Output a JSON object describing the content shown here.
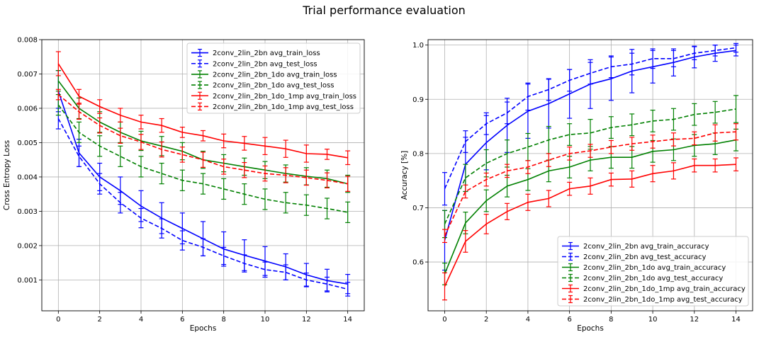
{
  "suptitle": "Trial performance evaluation",
  "chart_data": [
    {
      "type": "line",
      "xlabel": "Epochs",
      "ylabel": "Cross Entropy Loss",
      "xlim": [
        -0.8,
        14.8
      ],
      "ylim": [
        0.0001,
        0.008
      ],
      "xticks": [
        0,
        2,
        4,
        6,
        8,
        10,
        12,
        14
      ],
      "yticks": [
        0.001,
        0.002,
        0.003,
        0.004,
        0.005,
        0.006,
        0.007,
        0.008
      ],
      "ytick_labels": [
        "0.001",
        "0.002",
        "0.003",
        "0.004",
        "0.005",
        "0.006",
        "0.007",
        "0.008"
      ],
      "grid": true,
      "legend_position": "top-right",
      "x": [
        0,
        1,
        2,
        3,
        4,
        5,
        6,
        7,
        8,
        9,
        10,
        11,
        12,
        13,
        14
      ],
      "series": [
        {
          "name": "2conv_2lin_2bn  avg_train_loss",
          "color": "#0000ff",
          "dash": false,
          "values": [
            0.0065,
            0.0047,
            0.004,
            0.0036,
            0.00315,
            0.0028,
            0.0025,
            0.0022,
            0.0019,
            0.00172,
            0.00155,
            0.00138,
            0.00115,
            0.00098,
            0.00088
          ],
          "errors": [
            0.0006,
            0.0004,
            0.0004,
            0.0004,
            0.00045,
            0.00045,
            0.00045,
            0.0005,
            0.0005,
            0.00045,
            0.00042,
            0.00038,
            0.00033,
            0.00033,
            0.00028
          ]
        },
        {
          "name": "2conv_2lin_2bn  avg_test_loss",
          "color": "#0000ff",
          "dash": true,
          "values": [
            0.0057,
            0.0046,
            0.0038,
            0.00325,
            0.0028,
            0.0025,
            0.00215,
            0.00195,
            0.0017,
            0.00148,
            0.0013,
            0.00122,
            0.001,
            0.00088,
            0.00073
          ],
          "errors": [
            0.0003,
            0.0003,
            0.0003,
            0.0003,
            0.00028,
            0.00028,
            0.00028,
            0.00025,
            0.00025,
            0.00025,
            0.00022,
            0.00022,
            0.0002,
            0.0002,
            0.0002
          ]
        },
        {
          "name": "2conv_2lin_2bn_1do  avg_train_loss",
          "color": "#008000",
          "dash": false,
          "values": [
            0.0068,
            0.006,
            0.0056,
            0.0053,
            0.00505,
            0.0049,
            0.00475,
            0.0045,
            0.0044,
            0.0043,
            0.0042,
            0.0041,
            0.00402,
            0.00395,
            0.0038
          ],
          "errors": [
            0.0003,
            0.0003,
            0.0003,
            0.0003,
            0.00028,
            0.00028,
            0.00025,
            0.00025,
            0.00025,
            0.00025,
            0.00025,
            0.00025,
            0.00025,
            0.00025,
            0.00025
          ]
        },
        {
          "name": "2conv_2lin_2bn_1do  avg_test_loss",
          "color": "#008000",
          "dash": true,
          "values": [
            0.0061,
            0.0053,
            0.0049,
            0.0046,
            0.0043,
            0.0041,
            0.0039,
            0.0038,
            0.00365,
            0.0035,
            0.00335,
            0.00325,
            0.00318,
            0.00308,
            0.00297
          ],
          "errors": [
            0.0003,
            0.0003,
            0.0003,
            0.0003,
            0.0003,
            0.0003,
            0.0003,
            0.0003,
            0.0003,
            0.0003,
            0.0003,
            0.0003,
            0.0003,
            0.0003,
            0.0003
          ]
        },
        {
          "name": "2conv_2lin_2bn_1do_1mp  avg_train_loss",
          "color": "#ff0000",
          "dash": false,
          "values": [
            0.0073,
            0.00635,
            0.00605,
            0.0058,
            0.0056,
            0.0055,
            0.0053,
            0.0052,
            0.00505,
            0.00498,
            0.0049,
            0.00482,
            0.00468,
            0.00466,
            0.00456
          ],
          "errors": [
            0.00035,
            0.0002,
            0.0002,
            0.0002,
            0.0002,
            0.0002,
            0.00015,
            0.00015,
            0.0002,
            0.0002,
            0.00025,
            0.00025,
            0.00025,
            0.00015,
            0.0002
          ]
        },
        {
          "name": "2conv_2lin_2bn_1do_1mp  avg_test_loss",
          "color": "#ff0000",
          "dash": true,
          "values": [
            0.0064,
            0.0059,
            0.0055,
            0.0052,
            0.00502,
            0.0048,
            0.00465,
            0.0045,
            0.0043,
            0.0042,
            0.0041,
            0.00405,
            0.00398,
            0.0039,
            0.0038
          ],
          "errors": [
            0.00015,
            0.00022,
            0.00022,
            0.00022,
            0.00022,
            0.00022,
            0.00022,
            0.00022,
            0.00022,
            0.00022,
            0.00022,
            0.00022,
            0.00022,
            0.00022,
            0.00022
          ]
        }
      ]
    },
    {
      "type": "line",
      "xlabel": "Epochs",
      "ylabel": "Accuracy [%]",
      "xlim": [
        -0.8,
        14.8
      ],
      "ylim": [
        0.51,
        1.01
      ],
      "xticks": [
        0,
        2,
        4,
        6,
        8,
        10,
        12,
        14
      ],
      "yticks": [
        0.6,
        0.7,
        0.8,
        0.9,
        1.0
      ],
      "ytick_labels": [
        "0.6",
        "0.7",
        "0.8",
        "0.9",
        "1.0"
      ],
      "grid": true,
      "legend_position": "bottom-right",
      "x": [
        0,
        1,
        2,
        3,
        4,
        5,
        6,
        7,
        8,
        9,
        10,
        11,
        12,
        13,
        14
      ],
      "series": [
        {
          "name": "2conv_2lin_2bn  avg_train_accuracy",
          "color": "#0000ff",
          "dash": false,
          "values": [
            0.64,
            0.78,
            0.82,
            0.852,
            0.878,
            0.892,
            0.91,
            0.928,
            0.938,
            0.952,
            0.96,
            0.968,
            0.978,
            0.985,
            0.99
          ],
          "errors": [
            0.055,
            0.05,
            0.05,
            0.05,
            0.05,
            0.045,
            0.045,
            0.045,
            0.04,
            0.04,
            0.03,
            0.025,
            0.02,
            0.015,
            0.01
          ]
        },
        {
          "name": "2conv_2lin_2bn  avg_test_accuracy",
          "color": "#0000ff",
          "dash": true,
          "values": [
            0.735,
            0.822,
            0.855,
            0.875,
            0.905,
            0.918,
            0.935,
            0.948,
            0.96,
            0.965,
            0.975,
            0.975,
            0.985,
            0.99,
            0.995
          ],
          "errors": [
            0.03,
            0.02,
            0.02,
            0.02,
            0.025,
            0.02,
            0.02,
            0.02,
            0.02,
            0.02,
            0.018,
            0.015,
            0.012,
            0.01,
            0.008
          ]
        },
        {
          "name": "2conv_2lin_2bn_1do  avg_train_accuracy",
          "color": "#008000",
          "dash": false,
          "values": [
            0.578,
            0.672,
            0.713,
            0.74,
            0.752,
            0.768,
            0.775,
            0.788,
            0.793,
            0.793,
            0.804,
            0.807,
            0.815,
            0.818,
            0.825
          ],
          "errors": [
            0.02,
            0.02,
            0.02,
            0.02,
            0.02,
            0.02,
            0.02,
            0.02,
            0.02,
            0.02,
            0.02,
            0.02,
            0.02,
            0.02,
            0.02
          ]
        },
        {
          "name": "2conv_2lin_2bn_1do  avg_test_accuracy",
          "color": "#008000",
          "dash": true,
          "values": [
            0.67,
            0.755,
            0.782,
            0.8,
            0.812,
            0.825,
            0.835,
            0.838,
            0.848,
            0.853,
            0.86,
            0.863,
            0.872,
            0.876,
            0.882
          ],
          "errors": [
            0.025,
            0.025,
            0.025,
            0.025,
            0.025,
            0.025,
            0.02,
            0.025,
            0.02,
            0.02,
            0.02,
            0.02,
            0.02,
            0.02,
            0.025
          ]
        },
        {
          "name": "2conv_2lin_2bn_1do_1mp  avg_train_accuracy",
          "color": "#ff0000",
          "dash": false,
          "values": [
            0.555,
            0.638,
            0.67,
            0.693,
            0.71,
            0.717,
            0.735,
            0.74,
            0.752,
            0.753,
            0.763,
            0.768,
            0.778,
            0.778,
            0.78
          ],
          "errors": [
            0.025,
            0.02,
            0.018,
            0.015,
            0.015,
            0.015,
            0.012,
            0.015,
            0.012,
            0.015,
            0.015,
            0.015,
            0.012,
            0.012,
            0.012
          ]
        },
        {
          "name": "2conv_2lin_2bn_1do_1mp  avg_test_accuracy",
          "color": "#ff0000",
          "dash": true,
          "values": [
            0.648,
            0.73,
            0.752,
            0.768,
            0.775,
            0.788,
            0.8,
            0.805,
            0.812,
            0.818,
            0.822,
            0.826,
            0.828,
            0.838,
            0.84
          ],
          "errors": [
            0.012,
            0.012,
            0.012,
            0.012,
            0.012,
            0.012,
            0.012,
            0.012,
            0.012,
            0.012,
            0.012,
            0.012,
            0.012,
            0.015,
            0.015
          ]
        }
      ]
    }
  ]
}
